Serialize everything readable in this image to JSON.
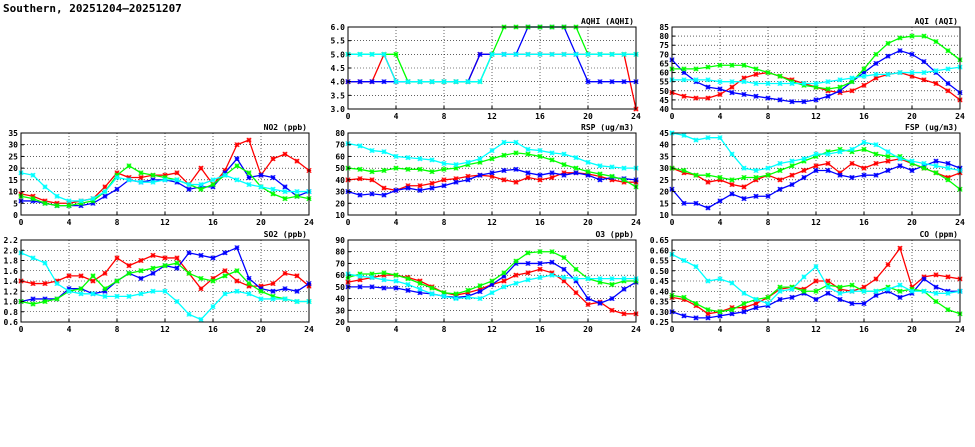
{
  "page": {
    "title": "Southern, 20251204–20251207"
  },
  "colors": {
    "series_a": "#ff0000",
    "series_b": "#0000ff",
    "series_c": "#00ff00",
    "series_d": "#00ffff"
  },
  "chart_data": [
    {
      "id": "aqhi",
      "type": "line",
      "title": "AQHI (AQHI)",
      "xlim": [
        0,
        24
      ],
      "xticks": [
        0,
        4,
        8,
        12,
        16,
        20,
        24
      ],
      "ylim": [
        3.0,
        6.0
      ],
      "yticks": [
        "3.0",
        "3.5",
        "4.0",
        "4.5",
        "5.0",
        "5.5",
        "6.0"
      ],
      "grid": true,
      "series": [
        {
          "color": "red",
          "values": [
            4,
            4,
            4,
            5,
            4,
            4,
            4,
            4,
            4,
            4,
            4,
            5,
            5,
            5,
            5,
            5,
            5,
            5,
            5,
            5,
            5,
            5,
            5,
            5,
            3
          ]
        },
        {
          "color": "blue",
          "values": [
            4,
            4,
            4,
            4,
            4,
            4,
            4,
            4,
            4,
            4,
            4,
            5,
            5,
            5,
            5,
            6,
            6,
            6,
            6,
            5,
            4,
            4,
            4,
            4,
            4
          ]
        },
        {
          "color": "green",
          "values": [
            5,
            5,
            5,
            5,
            5,
            4,
            4,
            4,
            4,
            4,
            4,
            4,
            5,
            6,
            6,
            6,
            6,
            6,
            6,
            6,
            5,
            5,
            5,
            5,
            5
          ]
        },
        {
          "color": "cyan",
          "values": [
            5,
            5,
            5,
            5,
            4,
            4,
            4,
            4,
            4,
            4,
            4,
            4,
            5,
            5,
            5,
            5,
            5,
            5,
            5,
            5,
            5,
            5,
            5,
            5,
            5
          ]
        }
      ]
    },
    {
      "id": "aqi",
      "type": "line",
      "title": "AQI (AQI)",
      "xlim": [
        0,
        24
      ],
      "xticks": [
        0,
        4,
        8,
        12,
        16,
        20,
        24
      ],
      "ylim": [
        40,
        85
      ],
      "yticks": [
        "40",
        "45",
        "50",
        "55",
        "60",
        "65",
        "70",
        "75",
        "80",
        "85"
      ],
      "grid": true,
      "series": [
        {
          "color": "red",
          "values": [
            49,
            47,
            46,
            46,
            48,
            52,
            57,
            59,
            60,
            58,
            56,
            54,
            52,
            50,
            49,
            50,
            53,
            57,
            59,
            60,
            58,
            56,
            54,
            50,
            45
          ]
        },
        {
          "color": "blue",
          "values": [
            67,
            60,
            55,
            52,
            51,
            49,
            48,
            47,
            46,
            45,
            44,
            44,
            45,
            47,
            50,
            55,
            60,
            65,
            69,
            72,
            70,
            66,
            60,
            54,
            49
          ]
        },
        {
          "color": "green",
          "values": [
            62,
            62,
            62,
            63,
            64,
            64,
            64,
            62,
            60,
            58,
            55,
            53,
            52,
            51,
            52,
            55,
            62,
            70,
            76,
            79,
            80,
            80,
            77,
            72,
            67
          ]
        },
        {
          "color": "cyan",
          "values": [
            56,
            56,
            56,
            56,
            55,
            55,
            55,
            54,
            54,
            54,
            54,
            54,
            54,
            55,
            56,
            57,
            58,
            59,
            59,
            60,
            60,
            60,
            61,
            62,
            63
          ]
        }
      ]
    },
    {
      "id": "no2",
      "type": "line",
      "title": "NO2 (ppb)",
      "xlim": [
        0,
        24
      ],
      "xticks": [
        0,
        4,
        8,
        12,
        16,
        20,
        24
      ],
      "ylim": [
        0,
        35
      ],
      "yticks": [
        "0",
        "5",
        "10",
        "15",
        "20",
        "25",
        "30",
        "35"
      ],
      "grid": true,
      "series": [
        {
          "color": "red",
          "values": [
            9,
            8,
            6,
            5,
            5,
            6,
            7,
            12,
            18,
            16,
            16,
            17,
            17,
            18,
            13,
            20,
            13,
            19,
            30,
            32,
            17,
            24,
            26,
            23,
            19
          ]
        },
        {
          "color": "blue",
          "values": [
            6,
            6,
            5,
            4,
            4,
            4,
            5,
            8,
            11,
            15,
            14,
            15,
            15,
            14,
            11,
            12,
            12,
            18,
            24,
            16,
            17,
            16,
            12,
            8,
            10
          ]
        },
        {
          "color": "green",
          "values": [
            8,
            7,
            5,
            4,
            4,
            5,
            6,
            10,
            17,
            21,
            18,
            17,
            16,
            15,
            13,
            11,
            13,
            17,
            21,
            18,
            12,
            9,
            7,
            8,
            7
          ]
        },
        {
          "color": "cyan",
          "values": [
            18,
            17,
            12,
            8,
            6,
            6,
            7,
            10,
            16,
            15,
            14,
            14,
            15,
            15,
            13,
            13,
            15,
            17,
            15,
            13,
            12,
            11,
            10,
            10,
            10
          ]
        }
      ]
    },
    {
      "id": "rsp",
      "type": "line",
      "title": "RSP (ug/m3)",
      "xlim": [
        0,
        24
      ],
      "xticks": [
        0,
        4,
        8,
        12,
        16,
        20,
        24
      ],
      "ylim": [
        10,
        80
      ],
      "yticks": [
        "10",
        "20",
        "30",
        "40",
        "50",
        "60",
        "70",
        "80"
      ],
      "grid": true,
      "series": [
        {
          "color": "red",
          "values": [
            40,
            41,
            40,
            33,
            31,
            35,
            35,
            37,
            40,
            41,
            43,
            44,
            43,
            40,
            38,
            42,
            40,
            42,
            46,
            46,
            45,
            43,
            40,
            38,
            38
          ]
        },
        {
          "color": "blue",
          "values": [
            30,
            27,
            28,
            27,
            31,
            33,
            31,
            33,
            35,
            38,
            40,
            44,
            46,
            48,
            49,
            46,
            44,
            46,
            44,
            46,
            44,
            40,
            42,
            41,
            40
          ]
        },
        {
          "color": "green",
          "values": [
            50,
            49,
            47,
            48,
            50,
            49,
            49,
            47,
            49,
            50,
            53,
            55,
            58,
            61,
            63,
            62,
            60,
            57,
            53,
            50,
            47,
            45,
            43,
            40,
            34
          ]
        },
        {
          "color": "cyan",
          "values": [
            71,
            69,
            65,
            64,
            60,
            59,
            58,
            57,
            54,
            53,
            55,
            58,
            65,
            72,
            72,
            66,
            65,
            63,
            62,
            59,
            55,
            52,
            51,
            50,
            50
          ]
        }
      ]
    },
    {
      "id": "fsp",
      "type": "line",
      "title": "FSP (ug/m3)",
      "xlim": [
        0,
        24
      ],
      "xticks": [
        0,
        4,
        8,
        12,
        16,
        20,
        24
      ],
      "ylim": [
        10,
        45
      ],
      "yticks": [
        "10",
        "15",
        "20",
        "25",
        "30",
        "35",
        "40",
        "45"
      ],
      "grid": true,
      "series": [
        {
          "color": "red",
          "values": [
            30,
            28,
            27,
            24,
            25,
            23,
            22,
            25,
            27,
            25,
            27,
            29,
            31,
            32,
            28,
            32,
            30,
            32,
            33,
            34,
            32,
            30,
            28,
            26,
            28
          ]
        },
        {
          "color": "blue",
          "values": [
            21,
            15,
            15,
            13,
            16,
            19,
            17,
            18,
            18,
            21,
            23,
            26,
            29,
            29,
            27,
            26,
            27,
            27,
            29,
            31,
            29,
            31,
            33,
            32,
            30
          ]
        },
        {
          "color": "green",
          "values": [
            30,
            29,
            27,
            27,
            26,
            25,
            26,
            26,
            27,
            29,
            31,
            33,
            35,
            37,
            38,
            37,
            38,
            36,
            35,
            35,
            32,
            30,
            28,
            25,
            21
          ]
        },
        {
          "color": "cyan",
          "values": [
            45,
            44,
            42,
            43,
            43,
            36,
            30,
            29,
            30,
            32,
            33,
            34,
            36,
            36,
            37,
            38,
            41,
            40,
            37,
            34,
            33,
            32,
            31,
            30,
            29
          ]
        }
      ]
    },
    {
      "id": "so2",
      "type": "line",
      "title": "SO2 (ppb)",
      "xlim": [
        0,
        24
      ],
      "xticks": [
        0,
        4,
        8,
        12,
        16,
        20,
        24
      ],
      "ylim": [
        0.6,
        2.2
      ],
      "yticks": [
        "0.6",
        "0.8",
        "1.0",
        "1.2",
        "1.4",
        "1.6",
        "1.8",
        "2.0",
        "2.2"
      ],
      "grid": true,
      "series": [
        {
          "color": "red",
          "values": [
            1.4,
            1.35,
            1.35,
            1.4,
            1.5,
            1.5,
            1.4,
            1.55,
            1.85,
            1.7,
            1.8,
            1.9,
            1.85,
            1.85,
            1.55,
            1.25,
            1.45,
            1.6,
            1.4,
            1.3,
            1.3,
            1.35,
            1.55,
            1.5,
            1.3
          ]
        },
        {
          "color": "blue",
          "values": [
            1.0,
            1.05,
            1.05,
            1.05,
            1.25,
            1.25,
            1.15,
            1.2,
            1.4,
            1.55,
            1.45,
            1.55,
            1.7,
            1.65,
            1.95,
            1.9,
            1.85,
            1.95,
            2.05,
            1.45,
            1.25,
            1.2,
            1.25,
            1.2,
            1.35
          ]
        },
        {
          "color": "green",
          "values": [
            1.0,
            0.95,
            1.0,
            1.05,
            1.2,
            1.25,
            1.5,
            1.25,
            1.4,
            1.55,
            1.6,
            1.65,
            1.7,
            1.75,
            1.55,
            1.45,
            1.4,
            1.5,
            1.6,
            1.35,
            1.2,
            1.1,
            1.05,
            1.0,
            1.0
          ]
        },
        {
          "color": "cyan",
          "values": [
            1.95,
            1.85,
            1.75,
            1.35,
            1.2,
            1.15,
            1.15,
            1.1,
            1.1,
            1.1,
            1.15,
            1.2,
            1.2,
            1.0,
            0.75,
            0.65,
            0.9,
            1.15,
            1.2,
            1.15,
            1.05,
            1.05,
            1.05,
            1.0,
            1.0
          ]
        }
      ]
    },
    {
      "id": "o3",
      "type": "line",
      "title": "O3 (ppb)",
      "xlim": [
        0,
        24
      ],
      "xticks": [
        0,
        4,
        8,
        12,
        16,
        20,
        24
      ],
      "ylim": [
        20,
        90
      ],
      "yticks": [
        "20",
        "30",
        "40",
        "50",
        "60",
        "70",
        "80",
        "90"
      ],
      "grid": true,
      "series": [
        {
          "color": "red",
          "values": [
            54,
            56,
            58,
            60,
            60,
            58,
            55,
            50,
            45,
            43,
            45,
            48,
            52,
            55,
            60,
            62,
            65,
            62,
            55,
            45,
            35,
            37,
            30,
            27,
            27
          ]
        },
        {
          "color": "blue",
          "values": [
            50,
            50,
            50,
            49,
            49,
            47,
            45,
            44,
            42,
            41,
            42,
            46,
            52,
            59,
            70,
            70,
            70,
            71,
            65,
            55,
            40,
            36,
            40,
            48,
            54
          ]
        },
        {
          "color": "green",
          "values": [
            58,
            61,
            61,
            62,
            60,
            57,
            53,
            49,
            45,
            44,
            47,
            51,
            55,
            62,
            72,
            79,
            80,
            80,
            75,
            65,
            57,
            54,
            52,
            55,
            55
          ]
        },
        {
          "color": "cyan",
          "values": [
            61,
            59,
            58,
            56,
            55,
            52,
            48,
            44,
            42,
            40,
            41,
            40,
            45,
            50,
            53,
            56,
            58,
            60,
            58,
            57,
            57,
            57,
            57,
            57,
            57
          ]
        }
      ]
    },
    {
      "id": "co",
      "type": "line",
      "title": "CO (ppm)",
      "xlim": [
        0,
        24
      ],
      "xticks": [
        0,
        4,
        8,
        12,
        16,
        20,
        24
      ],
      "ylim": [
        0.25,
        0.65
      ],
      "yticks": [
        "0.25",
        "0.30",
        "0.35",
        "0.40",
        "0.45",
        "0.50",
        "0.55",
        "0.60",
        "0.65"
      ],
      "grid": true,
      "series": [
        {
          "color": "red",
          "values": [
            0.37,
            0.36,
            0.33,
            0.29,
            0.3,
            0.32,
            0.32,
            0.34,
            0.37,
            0.41,
            0.42,
            0.41,
            0.45,
            0.45,
            0.41,
            0.4,
            0.42,
            0.46,
            0.53,
            0.61,
            0.42,
            0.47,
            0.48,
            0.47,
            0.46
          ]
        },
        {
          "color": "blue",
          "values": [
            0.3,
            0.28,
            0.27,
            0.27,
            0.28,
            0.29,
            0.3,
            0.32,
            0.33,
            0.36,
            0.37,
            0.39,
            0.36,
            0.39,
            0.36,
            0.34,
            0.34,
            0.38,
            0.4,
            0.37,
            0.39,
            0.46,
            0.42,
            0.4,
            0.4
          ]
        },
        {
          "color": "green",
          "values": [
            0.38,
            0.37,
            0.34,
            0.31,
            0.3,
            0.31,
            0.34,
            0.36,
            0.37,
            0.42,
            0.42,
            0.4,
            0.4,
            0.43,
            0.42,
            0.43,
            0.4,
            0.4,
            0.42,
            0.4,
            0.41,
            0.4,
            0.35,
            0.31,
            0.29
          ]
        },
        {
          "color": "cyan",
          "values": [
            0.58,
            0.55,
            0.52,
            0.45,
            0.46,
            0.44,
            0.39,
            0.36,
            0.34,
            0.4,
            0.41,
            0.47,
            0.52,
            0.42,
            0.39,
            0.4,
            0.4,
            0.4,
            0.41,
            0.43,
            0.4,
            0.4,
            0.39,
            0.39,
            0.4
          ]
        }
      ]
    }
  ]
}
